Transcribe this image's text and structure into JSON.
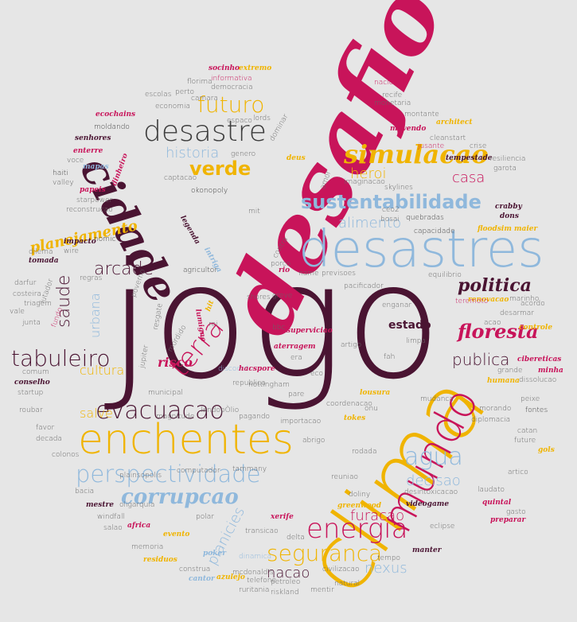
{
  "words": {
    "jogo": "jogo",
    "desafio": "desafio",
    "clima": "clima",
    "desastres": "desastres",
    "cidade": "cidade",
    "enchentes": "enchentes",
    "mundo": "mundo",
    "desastre": "desastre",
    "simulacao": "simulacao",
    "sustentabilidade": "sustentabilidade",
    "perspectividade": "perspectividade",
    "energia": "energia",
    "corrupcao": "corrupcao",
    "evacuacao": "evacuacao",
    "tabuleiro": "tabuleiro",
    "politica": "politica",
    "floresta": "floresta",
    "terra": "terra",
    "seguranca": "seguranca",
    "planejamento": "planejamento",
    "futuro": "futuro",
    "verde": "verde",
    "historia": "historia",
    "heroi": "heroi",
    "casa": "casa",
    "agua": "agua",
    "saude": "saude",
    "arcade": "arcade",
    "alimento": "alimento",
    "publica": "publica",
    "urbana": "urbana",
    "cultura": "cultura",
    "salve": "salve",
    "risco": "risco",
    "estado": "estado",
    "decisao": "decisao",
    "furacao": "furacao",
    "nexus": "nexus",
    "nacao": "nacao",
    "planicies": "planicies",
    "informativa": "informativa",
    "democracia": "democracia",
    "florima": "florima",
    "economia": "economia",
    "escolas": "escolas",
    "perto": "perto",
    "camara": "camara",
    "espaco": "espaco",
    "lords": "lords",
    "socinho": "socinho",
    "extremo": "extremo",
    "nacional": "nacional",
    "recife": "recife",
    "monetaria": "monetaria",
    "montante": "montante",
    "architect": "architect",
    "cleanstart": "cleanstart",
    "jusante": "jusante",
    "crise": "crise",
    "tempestade": "tempestade",
    "resiliencia": "resiliencia",
    "garota": "garota",
    "capacidade": "capacidade",
    "quebradas": "quebradas",
    "bosai": "bosai",
    "ceo2": "ceo2",
    "imaginacao": "imaginacao",
    "skylines": "skylines",
    "okonopoly": "okonopoly",
    "captacao": "captacao",
    "haiti": "haiti",
    "valley": "valley",
    "starpower": "starpower",
    "reconstrucao": "reconstrucao",
    "nomic": "nomic",
    "dilema": "dilema",
    "tomada": "tomada",
    "darfur": "darfur",
    "costeira": "costeira",
    "triagem": "triagem",
    "junta": "junta",
    "vale": "vale",
    "regras": "regras",
    "agricultor": "agricultor",
    "name": "name",
    "previsoes": "previsoes",
    "porco": "porco",
    "equilibrio": "equilibrio",
    "marinho": "marinho",
    "renovacao": "renovacao",
    "acordo": "acordo",
    "desarmar": "desarmar",
    "acao": "acao",
    "controle": "controle",
    "pacificador": "pacificador",
    "enganar": "enganar",
    "teremoto": "teremoto",
    "greve": "greve",
    "shores": "shores",
    "bbc": "bbc",
    "superviciao": "superviciao",
    "aterragem": "aterragem",
    "era": "era",
    "eco": "eco",
    "limpa": "limpa",
    "fah": "fah",
    "artigo": "artigo",
    "cibereticas": "cibereticas",
    "minha": "minha",
    "grande": "grande",
    "dissolucao": "dissolucao",
    "humana": "humana",
    "peixe": "peixe",
    "fontes": "fontes",
    "morando": "morando",
    "diplomacia": "diplomacia",
    "catan": "catan",
    "future": "future",
    "gols": "gols",
    "artico": "artico",
    "laudato": "laudato",
    "desintoxicacao": "desintoxicacao",
    "quintal": "quintal",
    "gasto": "gasto",
    "preparar": "preparar",
    "videogame": "videogame",
    "greenwood": "greenwood",
    "doliny": "doliny",
    "delta": "delta",
    "eclipse": "eclipse",
    "manter": "manter",
    "tempo": "tempo",
    "civilizacao": "civilizacao",
    "natural": "natural",
    "mentir": "mentir",
    "petroleo": "petroleo",
    "riskland": "riskland",
    "ruritania": "ruritania",
    "telefone": "telefone",
    "mcdonalds": "mcdonald's",
    "azulejo": "azulejo",
    "constrya": "construa",
    "poker": "poker",
    "residuos": "residuos",
    "cantor": "cantor",
    "memoria": "memoria",
    "salao": "salao",
    "africa": "africa",
    "windfall": "windfall",
    "oligarquia": "oligarquia",
    "mestre": "mestre",
    "bacia": "bacia",
    "colonos": "colonos",
    "decada": "decada",
    "favor": "favor",
    "roubar": "roubar",
    "startup": "startup",
    "conselho": "conselho",
    "comum": "comum",
    "impacto": "impacto",
    "wire": "wire",
    "plainsopolis": "plainsopolis",
    "computador": "computador",
    "tammany": "tammany",
    "magnitude": "magnitude",
    "landopolio": "landopÒlio",
    "pagando": "pagando",
    "importacao": "importacao",
    "nottingham": "nottingham",
    "pare": "pare",
    "republica": "republica",
    "municipal": "municipal",
    "discoord": "discoord",
    "hacspore": "hacspore",
    "abrigo": "abrigo",
    "reuniao": "reuniao",
    "rodada": "rodada",
    "coordenacao": "coordenacao",
    "onu": "onu",
    "mudanca": "mudanca",
    "lousura": "lousura",
    "tokes": "tokes",
    "polar": "polar",
    "transicao": "transicao",
    "dinamica": "dinamica",
    "xerife": "xerife",
    "evento": "evento",
    "moldando": "moldando",
    "ecochains": "ecochains",
    "senhores": "senhores",
    "entrerr": "enterre",
    "voce": "voce",
    "mapas": "mapas",
    "papeis": "papeis",
    "dinheiro": "dinheiro",
    "genero": "genero",
    "dominar": "dominar",
    "deus": "deus",
    "movendo": "movendo",
    "amor": "amor",
    "legenda": "legenda",
    "mit": "mit",
    "intriga": "intriga",
    "rio": "rio",
    "contra": "contra",
    "floodsim": "floodsim maier",
    "crabby": "crabby",
    "dons": "dons",
    "lutador": "lutador",
    "fundo": "fundo",
    "poverno": "poverno",
    "hit": "hit",
    "lumigne": "lumigne",
    "rei": "rei",
    "resgate": "resgate",
    "mordido": "mordido",
    "jupiter": "jupiter"
  },
  "colors": {
    "dark": "#4a1432",
    "magenta": "#c8145a",
    "yellow": "#f0b400",
    "blue": "#8fb8dc",
    "gray": "#666666",
    "background": "#e6e6e6"
  }
}
